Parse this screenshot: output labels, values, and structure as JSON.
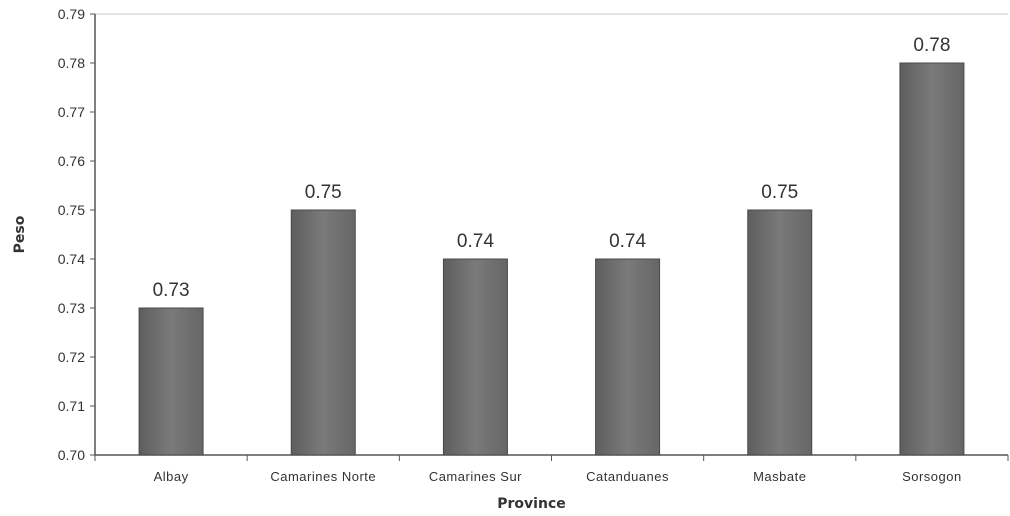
{
  "chart_data": {
    "type": "bar",
    "title": "",
    "xlabel": "Province",
    "ylabel": "Peso",
    "categories": [
      "Albay",
      "Camarines Norte",
      "Camarines Sur",
      "Catanduanes",
      "Masbate",
      "Sorsogon"
    ],
    "values": [
      0.73,
      0.75,
      0.74,
      0.74,
      0.75,
      0.78
    ],
    "data_labels": [
      "0.73",
      "0.75",
      "0.74",
      "0.74",
      "0.75",
      "0.78"
    ],
    "yticks": [
      "0.70",
      "0.71",
      "0.72",
      "0.73",
      "0.74",
      "0.75",
      "0.76",
      "0.77",
      "0.78",
      "0.79"
    ],
    "ylim": [
      0.7,
      0.79
    ],
    "grid": "top border only",
    "legend": "none",
    "colors": {
      "bar": "#7a7a7a",
      "bar_edge": "#4a4a4a",
      "axis": "#555555"
    }
  }
}
